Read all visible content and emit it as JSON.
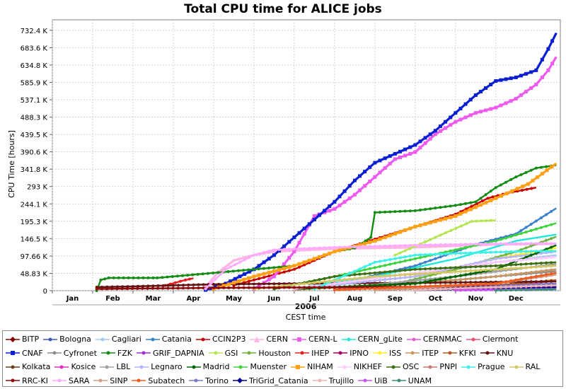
{
  "chart_data": {
    "type": "line",
    "title": "Total CPU time for ALICE jobs",
    "ylabel": "CPU Time [hours]",
    "xlabel": "CEST time",
    "year_label": "2006",
    "x_ticks": [
      "Jan",
      "Feb",
      "Mar",
      "Apr",
      "May",
      "Jun",
      "Jul",
      "Aug",
      "Sep",
      "Oct",
      "Nov",
      "Dec"
    ],
    "y_ticks": [
      "0",
      "48.83 K",
      "97.66 K",
      "146.5 K",
      "195.3 K",
      "244.1 K",
      "293 K",
      "341.8 K",
      "390.6 K",
      "439.5 K",
      "488.3 K",
      "537.1 K",
      "585.9 K",
      "634.8 K",
      "683.6 K",
      "732.4 K"
    ],
    "ylim_k": [
      0,
      762
    ],
    "xlim_month": [
      0,
      12.6
    ],
    "grid": true,
    "legend_position": "bottom",
    "series": [
      {
        "name": "BITP",
        "color": "#8b0000",
        "marker": "diamond",
        "points": []
      },
      {
        "name": "Bologna",
        "color": "#3b5bab",
        "marker": "line",
        "points": [
          [
            9.0,
            2
          ],
          [
            11.0,
            8
          ],
          [
            12.5,
            12
          ]
        ]
      },
      {
        "name": "Cagliari",
        "color": "#a4c8ef",
        "marker": "line",
        "points": [
          [
            6.0,
            5
          ],
          [
            9.0,
            40
          ],
          [
            11.0,
            80
          ],
          [
            12.5,
            100
          ]
        ]
      },
      {
        "name": "Catania",
        "color": "#3a7fce",
        "marker": "dot",
        "points": [
          [
            6.0,
            5
          ],
          [
            7.5,
            30
          ],
          [
            9.0,
            70
          ],
          [
            10.5,
            130
          ],
          [
            11.5,
            160
          ],
          [
            12.5,
            232
          ]
        ]
      },
      {
        "name": "CCIN2P3",
        "color": "#c80000",
        "marker": "dot",
        "points": [
          [
            4.5,
            15
          ],
          [
            6.0,
            60
          ],
          [
            7.0,
            110
          ],
          [
            8.0,
            145
          ],
          [
            9.0,
            180
          ],
          [
            10.0,
            215
          ],
          [
            10.8,
            260
          ],
          [
            11.3,
            275
          ],
          [
            12.0,
            290
          ]
        ]
      },
      {
        "name": "CERN",
        "color": "#ffb4e6",
        "marker": "triangle",
        "points": [
          [
            3.8,
            10
          ],
          [
            4.1,
            50
          ],
          [
            4.5,
            85
          ],
          [
            5.0,
            100
          ],
          [
            5.5,
            110
          ],
          [
            7.0,
            118
          ],
          [
            9.0,
            122
          ],
          [
            11.0,
            130
          ],
          [
            12.5,
            132
          ]
        ]
      },
      {
        "name": "CERN-L",
        "color": "#ee5aee",
        "marker": "square",
        "points": [
          [
            5.0,
            5
          ],
          [
            5.5,
            40
          ],
          [
            6.0,
            110
          ],
          [
            6.5,
            210
          ],
          [
            7.0,
            230
          ],
          [
            7.5,
            270
          ],
          [
            8.0,
            320
          ],
          [
            8.5,
            370
          ],
          [
            9.0,
            390
          ],
          [
            9.5,
            440
          ],
          [
            10.0,
            475
          ],
          [
            10.5,
            500
          ],
          [
            11.0,
            515
          ],
          [
            11.5,
            540
          ],
          [
            12.0,
            580
          ],
          [
            12.3,
            620
          ],
          [
            12.5,
            658
          ]
        ]
      },
      {
        "name": "CERN_gLite",
        "color": "#1ee8d8",
        "marker": "line",
        "points": [
          [
            6.0,
            5
          ],
          [
            8.0,
            40
          ],
          [
            10.0,
            90
          ],
          [
            11.5,
            140
          ],
          [
            12.5,
            158
          ]
        ]
      },
      {
        "name": "CERNMAC",
        "color": "#e85ad0",
        "marker": "dot",
        "points": [
          [
            11.8,
            2
          ],
          [
            12.5,
            8
          ]
        ]
      },
      {
        "name": "Clermont",
        "color": "#e8506e",
        "marker": "dot",
        "points": [
          [
            9.0,
            3
          ],
          [
            11.0,
            10
          ],
          [
            12.5,
            28
          ]
        ]
      },
      {
        "name": "CNAF",
        "color": "#0a1ed2",
        "marker": "square",
        "points": [
          [
            3.8,
            2
          ],
          [
            4.3,
            20
          ],
          [
            5.0,
            60
          ],
          [
            5.5,
            100
          ],
          [
            6.0,
            150
          ],
          [
            6.5,
            200
          ],
          [
            7.0,
            250
          ],
          [
            7.5,
            310
          ],
          [
            8.0,
            360
          ],
          [
            8.5,
            385
          ],
          [
            9.0,
            410
          ],
          [
            9.5,
            450
          ],
          [
            10.0,
            500
          ],
          [
            10.5,
            550
          ],
          [
            11.0,
            590
          ],
          [
            11.5,
            600
          ],
          [
            12.0,
            620
          ],
          [
            12.3,
            680
          ],
          [
            12.5,
            725
          ]
        ]
      },
      {
        "name": "Cyfronet",
        "color": "#8c8c8c",
        "marker": "dot",
        "points": [
          [
            7.0,
            3
          ],
          [
            10.0,
            30
          ],
          [
            12.5,
            55
          ]
        ]
      },
      {
        "name": "FZK",
        "color": "#148c14",
        "marker": "dot",
        "points": [
          [
            1.1,
            0
          ],
          [
            1.2,
            30
          ],
          [
            1.4,
            36
          ],
          [
            2.5,
            36
          ],
          [
            2.6,
            36
          ],
          [
            6.0,
            70
          ],
          [
            7.0,
            110
          ],
          [
            7.5,
            120
          ],
          [
            7.9,
            150
          ],
          [
            8.0,
            220
          ],
          [
            9.0,
            225
          ],
          [
            10.0,
            240
          ],
          [
            10.5,
            250
          ],
          [
            11.0,
            290
          ],
          [
            11.5,
            320
          ],
          [
            12.0,
            345
          ],
          [
            12.5,
            353
          ]
        ]
      },
      {
        "name": "GRIF_DAPNIA",
        "color": "#a02ed2",
        "marker": "dot",
        "points": [
          [
            10.0,
            2
          ],
          [
            12.5,
            15
          ]
        ]
      },
      {
        "name": "GSI",
        "color": "#b4e650",
        "marker": "dot",
        "points": [
          [
            8.5,
            100
          ],
          [
            9.5,
            150
          ],
          [
            10.4,
            195
          ],
          [
            11.0,
            198
          ]
        ]
      },
      {
        "name": "Houston",
        "color": "#6eb43c",
        "marker": "dot",
        "points": [
          [
            8.0,
            5
          ],
          [
            10.0,
            60
          ],
          [
            11.5,
            110
          ],
          [
            12.5,
            152
          ]
        ]
      },
      {
        "name": "IHEP",
        "color": "#e61e1e",
        "marker": "dot",
        "points": [
          [
            2.8,
            15
          ],
          [
            3.3,
            30
          ],
          [
            3.5,
            35
          ]
        ]
      },
      {
        "name": "IPNO",
        "color": "#a00064",
        "marker": "dot",
        "points": [
          [
            10.0,
            2
          ],
          [
            12.5,
            12
          ]
        ]
      },
      {
        "name": "ISS",
        "color": "#fff01e",
        "marker": "dot",
        "points": [
          [
            6.0,
            5
          ],
          [
            9.0,
            40
          ],
          [
            11.0,
            90
          ],
          [
            12.5,
            120
          ]
        ]
      },
      {
        "name": "ITEP",
        "color": "#c89664",
        "marker": "dot",
        "points": [
          [
            6.0,
            3
          ],
          [
            9.0,
            20
          ],
          [
            11.0,
            40
          ],
          [
            12.5,
            60
          ]
        ]
      },
      {
        "name": "KFKI",
        "color": "#b45a28",
        "marker": "dot",
        "points": [
          [
            8.0,
            2
          ],
          [
            11.0,
            15
          ],
          [
            12.5,
            30
          ]
        ]
      },
      {
        "name": "KNU",
        "color": "#641414",
        "marker": "dot",
        "points": [
          [
            1.1,
            10
          ],
          [
            2.0,
            12
          ],
          [
            3.0,
            15
          ],
          [
            4.0,
            18
          ],
          [
            6.0,
            20
          ],
          [
            9.0,
            22
          ],
          [
            12.5,
            26
          ]
        ]
      },
      {
        "name": "Kolkata",
        "color": "#6e3c14",
        "marker": "dot",
        "points": [
          [
            9.0,
            2
          ],
          [
            12.5,
            20
          ]
        ]
      },
      {
        "name": "Kosice",
        "color": "#e628c8",
        "marker": "dot",
        "points": [
          [
            10.0,
            2
          ],
          [
            12.5,
            10
          ]
        ]
      },
      {
        "name": "LBL",
        "color": "#a0a0a0",
        "marker": "dot",
        "points": [
          [
            7.0,
            5
          ],
          [
            10.0,
            40
          ],
          [
            12.5,
            75
          ]
        ]
      },
      {
        "name": "Legnaro",
        "color": "#b4b4ff",
        "marker": "dot",
        "points": [
          [
            6.0,
            5
          ],
          [
            9.0,
            40
          ],
          [
            11.0,
            90
          ],
          [
            12.5,
            110
          ]
        ]
      },
      {
        "name": "Madrid",
        "color": "#006400",
        "marker": "dot",
        "points": [
          [
            6.0,
            5
          ],
          [
            9.0,
            20
          ],
          [
            11.0,
            60
          ],
          [
            12.5,
            128
          ]
        ]
      },
      {
        "name": "Muenster",
        "color": "#3cd23c",
        "marker": "dot",
        "points": [
          [
            5.5,
            5
          ],
          [
            7.0,
            40
          ],
          [
            9.0,
            90
          ],
          [
            11.0,
            140
          ],
          [
            12.5,
            190
          ]
        ]
      },
      {
        "name": "NIHAM",
        "color": "#ffa014",
        "marker": "square",
        "points": [
          [
            4.0,
            5
          ],
          [
            5.0,
            40
          ],
          [
            6.0,
            70
          ],
          [
            7.0,
            110
          ],
          [
            8.0,
            140
          ],
          [
            9.0,
            180
          ],
          [
            10.0,
            210
          ],
          [
            11.0,
            260
          ],
          [
            11.8,
            300
          ],
          [
            12.5,
            358
          ]
        ]
      },
      {
        "name": "NIKHEF",
        "color": "#ffc8ff",
        "marker": "dot",
        "points": [
          [
            6.0,
            5
          ],
          [
            9.0,
            50
          ],
          [
            11.0,
            80
          ],
          [
            12.5,
            95
          ]
        ]
      },
      {
        "name": "OSC",
        "color": "#3c6e14",
        "marker": "dot",
        "points": [
          [
            5.5,
            5
          ],
          [
            7.0,
            40
          ],
          [
            9.0,
            60
          ],
          [
            11.0,
            70
          ],
          [
            12.5,
            80
          ]
        ]
      },
      {
        "name": "PNPI",
        "color": "#c8786e",
        "marker": "dot",
        "points": [
          [
            8.0,
            2
          ],
          [
            11.0,
            20
          ],
          [
            12.5,
            50
          ]
        ]
      },
      {
        "name": "Prague",
        "color": "#3cf0e6",
        "marker": "dot",
        "points": [
          [
            6.5,
            5
          ],
          [
            7.0,
            30
          ],
          [
            8.0,
            80
          ],
          [
            9.0,
            100
          ],
          [
            10.0,
            105
          ],
          [
            11.5,
            110
          ],
          [
            12.5,
            112
          ]
        ]
      },
      {
        "name": "RAL",
        "color": "#d2c864",
        "marker": "dot",
        "points": [
          [
            5.0,
            5
          ],
          [
            8.0,
            40
          ],
          [
            11.0,
            60
          ],
          [
            12.5,
            70
          ]
        ]
      },
      {
        "name": "RRC-KI",
        "color": "#8c0a0a",
        "marker": "dot",
        "points": [
          [
            1.1,
            5
          ],
          [
            4.0,
            8
          ],
          [
            8.0,
            10
          ],
          [
            12.5,
            15
          ]
        ]
      },
      {
        "name": "SARA",
        "color": "#ffaaff",
        "marker": "dot",
        "points": [
          [
            3.8,
            5
          ],
          [
            4.3,
            60
          ],
          [
            5.0,
            100
          ],
          [
            5.5,
            115
          ],
          [
            7.0,
            122
          ],
          [
            9.0,
            128
          ],
          [
            11.0,
            132
          ],
          [
            12.5,
            133
          ]
        ]
      },
      {
        "name": "SINP",
        "color": "#d2a08c",
        "marker": "dot",
        "points": [
          [
            8.0,
            2
          ],
          [
            11.0,
            20
          ],
          [
            12.5,
            45
          ]
        ]
      },
      {
        "name": "Subatech",
        "color": "#f05a1e",
        "marker": "dot",
        "points": [
          [
            7.0,
            2
          ],
          [
            11.0,
            20
          ],
          [
            12.5,
            50
          ]
        ]
      },
      {
        "name": "Torino",
        "color": "#7878c8",
        "marker": "dot",
        "points": [
          [
            9.0,
            2
          ],
          [
            12.5,
            20
          ]
        ]
      },
      {
        "name": "TriGrid_Catania",
        "color": "#00008c",
        "marker": "diamond",
        "points": [
          [
            9.0,
            2
          ],
          [
            12.5,
            10
          ]
        ]
      },
      {
        "name": "Trujillo",
        "color": "#f0b4b4",
        "marker": "dot",
        "points": [
          [
            9.0,
            2
          ],
          [
            12.5,
            15
          ]
        ]
      },
      {
        "name": "UiB",
        "color": "#c850f0",
        "marker": "dot",
        "points": [
          [
            10.0,
            1
          ],
          [
            12.5,
            5
          ]
        ]
      },
      {
        "name": "UNAM",
        "color": "#3c8c78",
        "marker": "dot",
        "points": [
          [
            11.0,
            1
          ],
          [
            12.5,
            4
          ]
        ]
      }
    ]
  }
}
